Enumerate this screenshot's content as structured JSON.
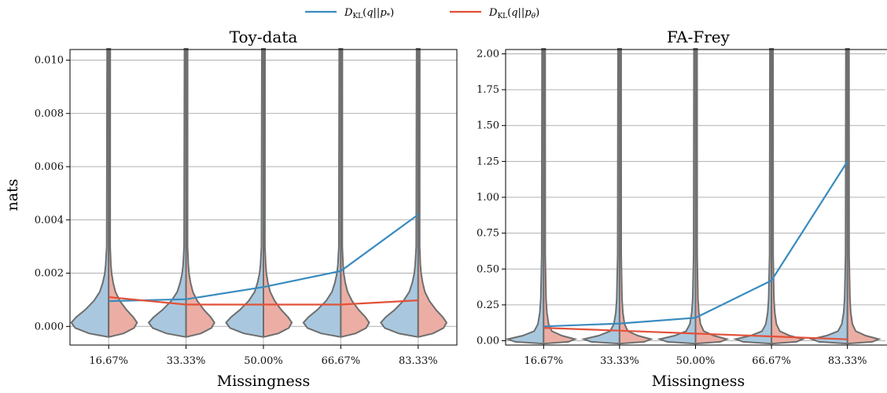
{
  "legend": {
    "entries": [
      {
        "label": "D_KL(q||p_*)",
        "color": "#3a8bbf"
      },
      {
        "label": "D_KL(q||p_θ)",
        "color": "#e2513a"
      }
    ]
  },
  "colors": {
    "violin_left_fill": "#a9c8df",
    "violin_right_fill": "#ecaea4",
    "violin_outline": "#6e6e6e"
  },
  "chart_data": [
    {
      "type": "line",
      "title": "Toy-data",
      "xlabel": "Missingness",
      "ylabel": "nats",
      "categories": [
        "16.67%",
        "33.33%",
        "50.00%",
        "66.67%",
        "83.33%"
      ],
      "ylim": [
        -0.0007,
        0.0104
      ],
      "yticks": [
        "0.000",
        "0.002",
        "0.004",
        "0.006",
        "0.008",
        "0.010"
      ],
      "ytick_values": [
        0,
        0.002,
        0.004,
        0.006,
        0.008,
        0.01
      ],
      "grid": true,
      "series": [
        {
          "name": "D_KL(q||p_*)",
          "color": "#3a8bbf",
          "values": [
            0.00095,
            0.00102,
            0.00148,
            0.00208,
            0.0042
          ]
        },
        {
          "name": "D_KL(q||p_θ)",
          "color": "#e2513a",
          "values": [
            0.0011,
            0.00082,
            0.00082,
            0.00082,
            0.00098
          ]
        }
      ],
      "violin_mode": "mode_near_zero"
    },
    {
      "type": "line",
      "title": "FA-Frey",
      "xlabel": "Missingness",
      "ylabel": "",
      "categories": [
        "16.67%",
        "33.33%",
        "50.00%",
        "66.67%",
        "83.33%"
      ],
      "ylim": [
        -0.03,
        2.03
      ],
      "yticks": [
        "0.00",
        "0.25",
        "0.50",
        "0.75",
        "1.00",
        "1.25",
        "1.50",
        "1.75",
        "2.00"
      ],
      "ytick_values": [
        0,
        0.25,
        0.5,
        0.75,
        1.0,
        1.25,
        1.5,
        1.75,
        2.0
      ],
      "grid": true,
      "series": [
        {
          "name": "D_KL(q||p_*)",
          "color": "#3a8bbf",
          "values": [
            0.1,
            0.12,
            0.16,
            0.42,
            1.25
          ]
        },
        {
          "name": "D_KL(q||p_θ)",
          "color": "#e2513a",
          "values": [
            0.09,
            0.07,
            0.05,
            0.03,
            0.01
          ]
        }
      ],
      "violin_mode": "spike_at_zero"
    }
  ]
}
